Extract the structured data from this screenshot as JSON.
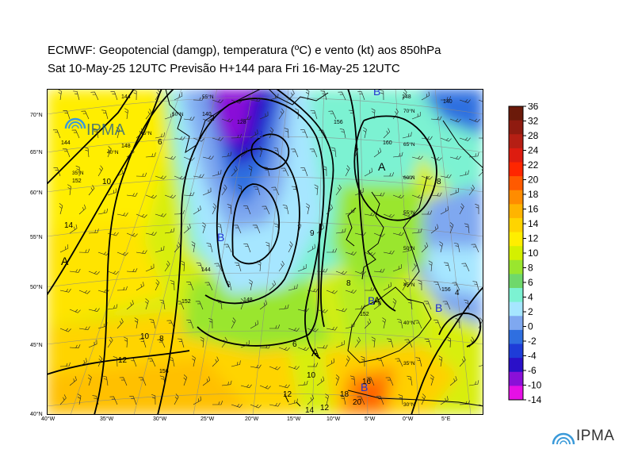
{
  "header": {
    "line1": "ECMWF:  Geopotencial (damgp), temperatura (ºC) e vento (kt) aos 850hPa",
    "line2": "Sat 10-May-25 12UTC Previsão H+144 para Fri 16-May-25 12UTC"
  },
  "logo": {
    "text": "IPMA"
  },
  "colorbar": {
    "ticks": [
      "36",
      "32",
      "28",
      "24",
      "22",
      "20",
      "18",
      "16",
      "14",
      "12",
      "10",
      "8",
      "6",
      "4",
      "2",
      "0",
      "-2",
      "-4",
      "-6",
      "-10",
      "-14"
    ],
    "colors": [
      "#6b1a0a",
      "#8f1b10",
      "#b51f14",
      "#dd1c10",
      "#ff2600",
      "#ff5a00",
      "#ff8c00",
      "#ffb400",
      "#ffd400",
      "#ffee00",
      "#d4f000",
      "#9ae62e",
      "#6fd86b",
      "#7cf2d2",
      "#a6e6ff",
      "#7fa8f0",
      "#2f6fe0",
      "#1e3cd8",
      "#2a10c8",
      "#8a10d8",
      "#e610e6"
    ]
  },
  "map": {
    "lat_labels": [
      "70°N",
      "65°N",
      "60°N",
      "55°N",
      "50°N",
      "45°N",
      "40°N"
    ],
    "lon_labels": [
      "40°W",
      "35°W",
      "30°W",
      "25°W",
      "20°W",
      "15°W",
      "10°W",
      "5°W",
      "0°W",
      "5°E"
    ],
    "grid_labels": [
      "55°N",
      "50°N",
      "45°N",
      "40°N",
      "35°N",
      "70°N",
      "65°N",
      "60°N",
      "55°N",
      "50°N",
      "45°N",
      "40°N",
      "35°N",
      "30°N"
    ],
    "pressure_centers": [
      {
        "label": "B",
        "type": "low"
      },
      {
        "label": "B",
        "type": "low"
      },
      {
        "label": "B",
        "type": "low"
      },
      {
        "label": "B",
        "type": "low"
      },
      {
        "label": "B",
        "type": "low"
      },
      {
        "label": "B",
        "type": "low"
      },
      {
        "label": "A",
        "type": "high"
      },
      {
        "label": "A",
        "type": "high"
      },
      {
        "label": "A",
        "type": "high"
      },
      {
        "label": "B",
        "type": "low"
      },
      {
        "label": "A",
        "type": "high"
      }
    ],
    "geopotential_labels": [
      "144",
      "148",
      "152",
      "156",
      "128",
      "140",
      "144",
      "148",
      "156",
      "160",
      "148",
      "152",
      "140",
      "144",
      "152",
      "156"
    ],
    "temperature_labels": [
      "14",
      "10",
      "12",
      "10",
      "8",
      "6",
      "6",
      "9",
      "8",
      "10",
      "14",
      "12",
      "18",
      "20",
      "16",
      "12",
      "2",
      "8",
      "4"
    ]
  }
}
